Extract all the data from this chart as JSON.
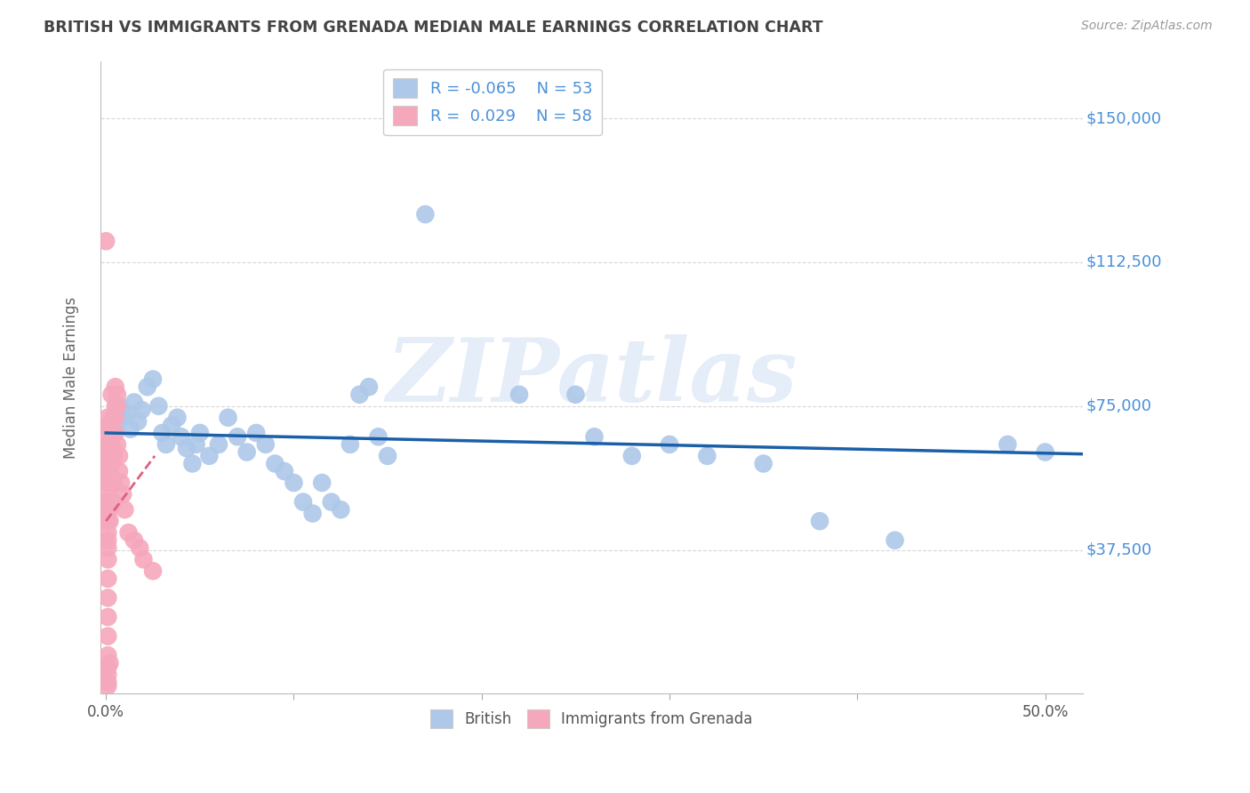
{
  "title": "BRITISH VS IMMIGRANTS FROM GRENADA MEDIAN MALE EARNINGS CORRELATION CHART",
  "source": "Source: ZipAtlas.com",
  "ylabel": "Median Male Earnings",
  "y_tick_labels": [
    "$37,500",
    "$75,000",
    "$112,500",
    "$150,000"
  ],
  "y_tick_values": [
    37500,
    75000,
    112500,
    150000
  ],
  "ylim": [
    0,
    165000
  ],
  "xlim": [
    -0.003,
    0.52
  ],
  "watermark": "ZIPatlas",
  "blue_color": "#adc8e8",
  "pink_color": "#f5a8bc",
  "blue_line_color": "#1a5fa8",
  "pink_line_color": "#e06080",
  "blue_scatter": [
    [
      0.003,
      68000
    ],
    [
      0.005,
      70000
    ],
    [
      0.007,
      75000
    ],
    [
      0.009,
      72000
    ],
    [
      0.011,
      73000
    ],
    [
      0.013,
      69000
    ],
    [
      0.015,
      76000
    ],
    [
      0.017,
      71000
    ],
    [
      0.019,
      74000
    ],
    [
      0.022,
      80000
    ],
    [
      0.025,
      82000
    ],
    [
      0.028,
      75000
    ],
    [
      0.03,
      68000
    ],
    [
      0.032,
      65000
    ],
    [
      0.035,
      70000
    ],
    [
      0.038,
      72000
    ],
    [
      0.04,
      67000
    ],
    [
      0.043,
      64000
    ],
    [
      0.046,
      60000
    ],
    [
      0.048,
      65000
    ],
    [
      0.05,
      68000
    ],
    [
      0.055,
      62000
    ],
    [
      0.06,
      65000
    ],
    [
      0.065,
      72000
    ],
    [
      0.07,
      67000
    ],
    [
      0.075,
      63000
    ],
    [
      0.08,
      68000
    ],
    [
      0.085,
      65000
    ],
    [
      0.09,
      60000
    ],
    [
      0.095,
      58000
    ],
    [
      0.1,
      55000
    ],
    [
      0.105,
      50000
    ],
    [
      0.11,
      47000
    ],
    [
      0.115,
      55000
    ],
    [
      0.12,
      50000
    ],
    [
      0.125,
      48000
    ],
    [
      0.13,
      65000
    ],
    [
      0.135,
      78000
    ],
    [
      0.14,
      80000
    ],
    [
      0.145,
      67000
    ],
    [
      0.15,
      62000
    ],
    [
      0.17,
      125000
    ],
    [
      0.22,
      78000
    ],
    [
      0.25,
      78000
    ],
    [
      0.26,
      67000
    ],
    [
      0.28,
      62000
    ],
    [
      0.3,
      65000
    ],
    [
      0.32,
      62000
    ],
    [
      0.35,
      60000
    ],
    [
      0.38,
      45000
    ],
    [
      0.42,
      40000
    ],
    [
      0.48,
      65000
    ],
    [
      0.5,
      63000
    ]
  ],
  "pink_scatter": [
    [
      0.001,
      62000
    ],
    [
      0.001,
      60000
    ],
    [
      0.001,
      58000
    ],
    [
      0.001,
      65000
    ],
    [
      0.001,
      68000
    ],
    [
      0.001,
      70000
    ],
    [
      0.001,
      55000
    ],
    [
      0.001,
      52000
    ],
    [
      0.001,
      50000
    ],
    [
      0.001,
      48000
    ],
    [
      0.001,
      45000
    ],
    [
      0.001,
      42000
    ],
    [
      0.001,
      40000
    ],
    [
      0.001,
      38000
    ],
    [
      0.001,
      35000
    ],
    [
      0.001,
      30000
    ],
    [
      0.001,
      25000
    ],
    [
      0.001,
      20000
    ],
    [
      0.001,
      15000
    ],
    [
      0.001,
      10000
    ],
    [
      0.001,
      7000
    ],
    [
      0.001,
      5000
    ],
    [
      0.001,
      3000
    ],
    [
      0.002,
      62000
    ],
    [
      0.002,
      58000
    ],
    [
      0.002,
      55000
    ],
    [
      0.002,
      65000
    ],
    [
      0.002,
      48000
    ],
    [
      0.002,
      45000
    ],
    [
      0.003,
      60000
    ],
    [
      0.003,
      65000
    ],
    [
      0.003,
      55000
    ],
    [
      0.004,
      62000
    ],
    [
      0.004,
      55000
    ],
    [
      0.004,
      50000
    ],
    [
      0.005,
      68000
    ],
    [
      0.005,
      72000
    ],
    [
      0.006,
      75000
    ],
    [
      0.006,
      65000
    ],
    [
      0.007,
      62000
    ],
    [
      0.007,
      58000
    ],
    [
      0.008,
      55000
    ],
    [
      0.009,
      52000
    ],
    [
      0.01,
      48000
    ],
    [
      0.012,
      42000
    ],
    [
      0.015,
      40000
    ],
    [
      0.018,
      38000
    ],
    [
      0.02,
      35000
    ],
    [
      0.025,
      32000
    ],
    [
      0.0,
      118000
    ],
    [
      0.003,
      78000
    ],
    [
      0.005,
      80000
    ],
    [
      0.005,
      75000
    ],
    [
      0.004,
      72000
    ],
    [
      0.006,
      78000
    ],
    [
      0.001,
      2000
    ],
    [
      0.002,
      8000
    ],
    [
      0.001,
      72000
    ]
  ],
  "blue_line_x": [
    0.0,
    0.52
  ],
  "blue_line_y": [
    68000,
    62500
  ],
  "pink_line_x": [
    0.0,
    0.026
  ],
  "pink_line_y": [
    45000,
    62000
  ],
  "grid_color": "#d8d8d8",
  "background_color": "#ffffff",
  "title_color": "#444444",
  "axis_label_color": "#666666",
  "right_tick_color": "#4a90d9",
  "watermark_color": "#c5d8f0",
  "watermark_alpha": 0.45,
  "legend_text_color": "#4a90d9"
}
